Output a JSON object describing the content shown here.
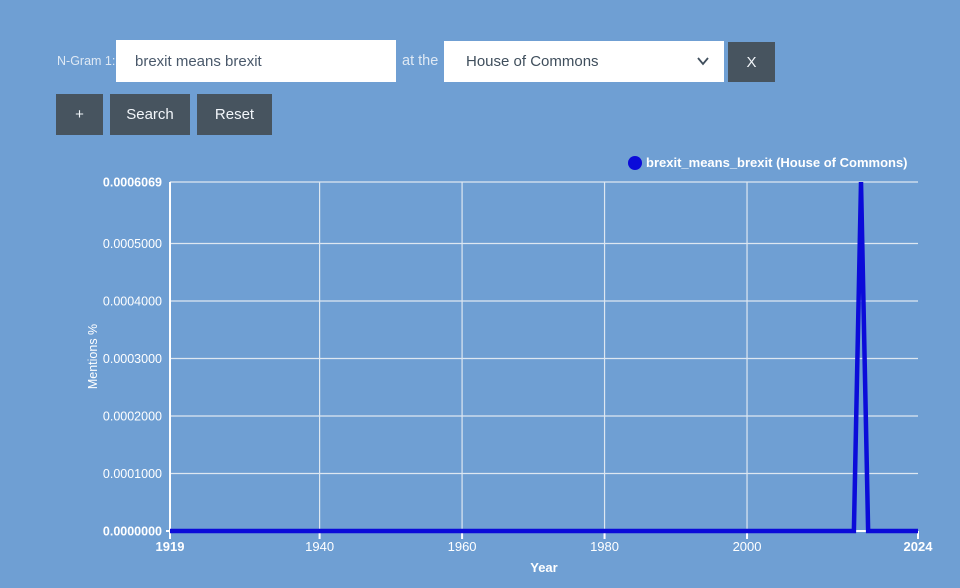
{
  "controls": {
    "ngram_label": "N-Gram 1:",
    "search_value": "brexit means brexit",
    "at_the_label": "at the",
    "corpus_selected": "House of Commons",
    "remove_label": "X",
    "add_label": "+",
    "search_label": "Search",
    "reset_label": "Reset"
  },
  "colors": {
    "background": "#6f9fd3",
    "button": "#47545f",
    "grid": "#dde7f1",
    "axis": "#ffffff",
    "series_line": "#0b0bd9"
  },
  "legend": {
    "entry": "brexit_means_brexit (House of Commons)"
  },
  "chart_data": {
    "type": "line",
    "title": "",
    "xlabel": "Year",
    "ylabel": "Mentions %",
    "xlim": [
      1919,
      2024
    ],
    "ylim": [
      0,
      0.0006069
    ],
    "x_ticks": [
      1919,
      1940,
      1960,
      1980,
      2000,
      2024
    ],
    "y_ticks": [
      "0.0000000",
      "0.0001000",
      "0.0002000",
      "0.0003000",
      "0.0004000",
      "0.0005000",
      "0.0006069"
    ],
    "grid": true,
    "legend_position": "top-right",
    "series": [
      {
        "name": "brexit_means_brexit (House of Commons)",
        "color": "#0b0bd9",
        "x": [
          1919,
          2015,
          2016,
          2017,
          2024
        ],
        "y": [
          0,
          0,
          0.0006069,
          0,
          0
        ]
      }
    ]
  }
}
